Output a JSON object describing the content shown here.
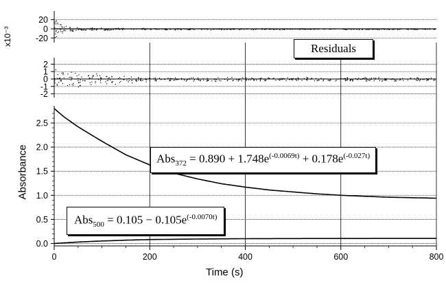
{
  "chart_data": [
    {
      "type": "scatter",
      "panel": "top residuals",
      "ylabel": "",
      "ylim": [
        -30,
        30
      ],
      "yticks": [
        20,
        0,
        -20
      ],
      "xlim": [
        0,
        800
      ],
      "grid": true,
      "note": "noisy residual points scattered about 0, larger spread for t < 100 s",
      "residual_envelope": {
        "t": [
          0,
          20,
          50,
          100,
          200,
          400,
          800
        ],
        "amplitude": [
          25,
          10,
          4,
          3,
          2,
          1.5,
          1
        ]
      }
    },
    {
      "type": "scatter",
      "panel": "middle residuals",
      "ylabel": "x10⁻³",
      "ylim": [
        -2.5,
        2.5
      ],
      "yticks": [
        2,
        1,
        0,
        -1,
        -2
      ],
      "ytick_labels": [
        "2",
        "1",
        "0",
        "-1",
        "-2"
      ],
      "xlim": [
        0,
        800
      ],
      "grid": true,
      "annotation": "Residuals",
      "residual_envelope": {
        "t": [
          0,
          50,
          100,
          200,
          400,
          800
        ],
        "amplitude": [
          1.5,
          1.2,
          0.8,
          0.4,
          0.3,
          0.3
        ]
      }
    },
    {
      "type": "line",
      "panel": "main",
      "xlabel": "Time (s)",
      "ylabel": "Absorbance",
      "xlim": [
        0,
        800
      ],
      "ylim": [
        -0.05,
        2.8
      ],
      "xticks": [
        0,
        200,
        400,
        600,
        800
      ],
      "yticks": [
        0.0,
        0.5,
        1.0,
        1.5,
        2.0,
        2.5
      ],
      "ytick_labels": [
        "0.0",
        "0.5",
        "1.0",
        "1.5",
        "2.0",
        "2.5"
      ],
      "grid": true,
      "series": [
        {
          "name": "Abs372",
          "x": [
            0,
            20,
            50,
            100,
            150,
            200,
            250,
            300,
            350,
            400,
            450,
            500,
            550,
            600,
            700,
            800
          ],
          "y": [
            2.8,
            2.63,
            2.42,
            2.12,
            1.84,
            1.63,
            1.46,
            1.34,
            1.24,
            1.17,
            1.11,
            1.07,
            1.03,
            1.0,
            0.96,
            0.94
          ]
        },
        {
          "name": "Abs500",
          "x": [
            0,
            50,
            100,
            150,
            200,
            300,
            400,
            500,
            600,
            700,
            800
          ],
          "y": [
            0.0,
            0.031,
            0.052,
            0.069,
            0.082,
            0.093,
            0.1,
            0.103,
            0.104,
            0.105,
            0.105
          ]
        }
      ],
      "equations": {
        "abs372": {
          "lhs": "Abs",
          "sub": "372",
          "rhs": " = 0.890 + 1.748e",
          "exp1": "(-0.0069t)",
          "mid": " + 0.178e",
          "exp2": "(-0.027t)"
        },
        "abs500": {
          "lhs": "Abs",
          "sub": "500",
          "rhs": " = 0.105 − 0.105e",
          "exp1": "(-0.0070t)"
        }
      }
    }
  ]
}
